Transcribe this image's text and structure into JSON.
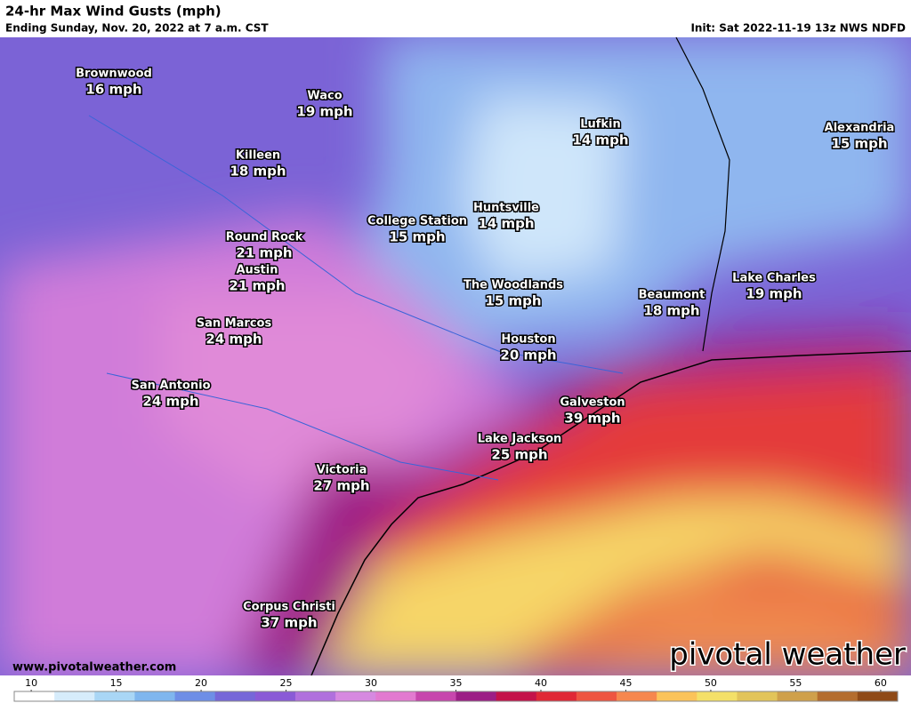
{
  "header": {
    "title": "24-hr Max Wind Gusts (mph)",
    "subtitle": "Ending Sunday, Nov. 20, 2022 at 7 a.m. CST",
    "init": "Init: Sat 2022-11-19 13z NWS NDFD"
  },
  "cities": [
    {
      "name": "Brownwood",
      "gust": "16 mph"
    },
    {
      "name": "Waco",
      "gust": "19 mph"
    },
    {
      "name": "Killeen",
      "gust": "18 mph"
    },
    {
      "name": "Round Rock",
      "gust": "21 mph"
    },
    {
      "name": "Austin",
      "gust": "21 mph"
    },
    {
      "name": "San Marcos",
      "gust": "24 mph"
    },
    {
      "name": "San Antonio",
      "gust": "24 mph"
    },
    {
      "name": "Lufkin",
      "gust": "14 mph"
    },
    {
      "name": "Alexandria",
      "gust": "15 mph"
    },
    {
      "name": "Huntsville",
      "gust": "14 mph"
    },
    {
      "name": "College Station",
      "gust": "15 mph"
    },
    {
      "name": "The Woodlands",
      "gust": "15 mph"
    },
    {
      "name": "Beaumont",
      "gust": "18 mph"
    },
    {
      "name": "Lake Charles",
      "gust": "19 mph"
    },
    {
      "name": "Houston",
      "gust": "20 mph"
    },
    {
      "name": "Galveston",
      "gust": "39 mph"
    },
    {
      "name": "Lake Jackson",
      "gust": "25 mph"
    },
    {
      "name": "Victoria",
      "gust": "27 mph"
    },
    {
      "name": "Corpus Christi",
      "gust": "37 mph"
    }
  ],
  "footer": {
    "website": "www.pivotalweather.com",
    "brand": "pivotal weather"
  },
  "colorbar": {
    "lim": [
      9,
      61
    ],
    "ticks": [
      10,
      15,
      20,
      25,
      30,
      35,
      40,
      45,
      50,
      55,
      60
    ],
    "colors": [
      "#ffffff",
      "#d6ecfb",
      "#a9d6f5",
      "#7fb6ee",
      "#6e8ee6",
      "#7667d8",
      "#8a5ad6",
      "#b070dd",
      "#d689e0",
      "#e27ad0",
      "#c746ad",
      "#9c1e86",
      "#c4124a",
      "#e02836",
      "#ee5541",
      "#f6874e",
      "#fbc35a",
      "#f4e068",
      "#e2c45a",
      "#cfa04b",
      "#b46d2e",
      "#8f4a17"
    ]
  }
}
